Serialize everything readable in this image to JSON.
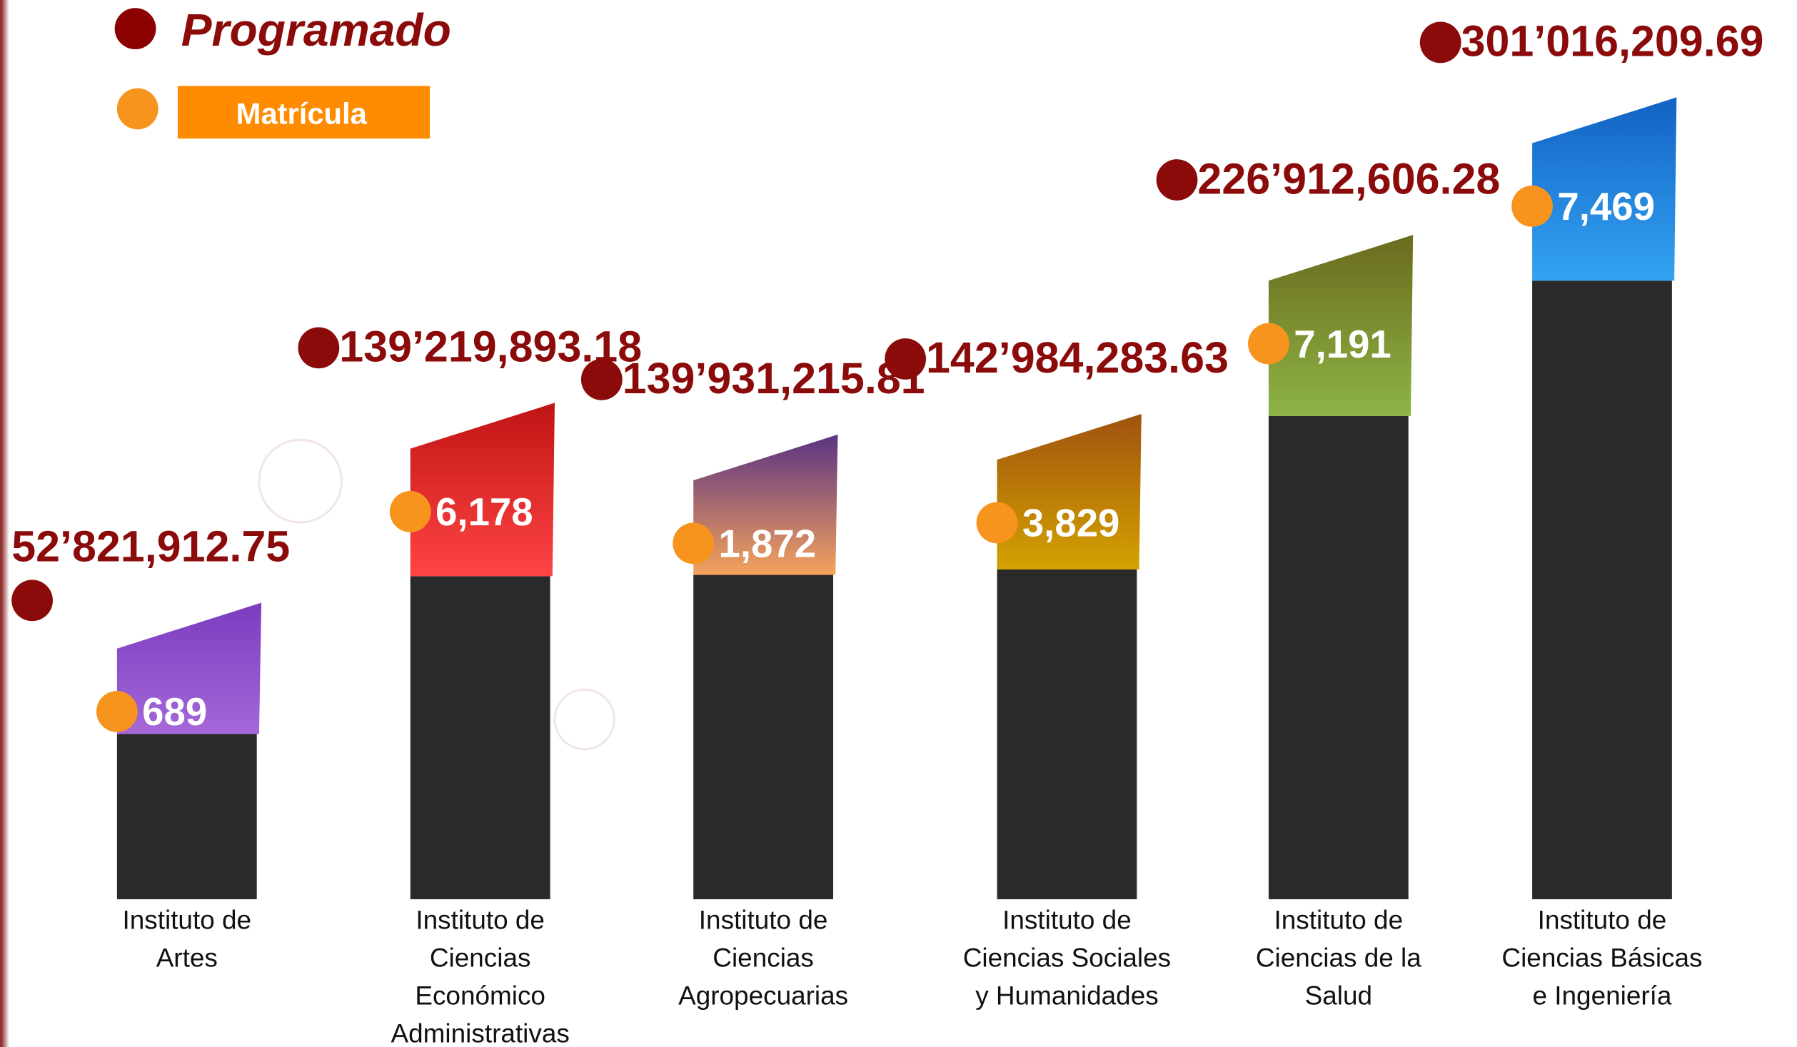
{
  "chart_data": {
    "type": "bar",
    "categories": [
      "Instituto de\nArtes",
      "Instituto de\nCiencias\nEconómico\nAdministrativas",
      "Instituto de\nCiencias\nAgropecuarias",
      "Instituto de\nCiencias Sociales\ny Humanidades",
      "Instituto de\nCiencias de la\nSalud",
      "Instituto de\nCiencias Básicas\ne Ingeniería"
    ],
    "series": [
      {
        "name": "Programado",
        "color": "#8b0a0a",
        "bar_color": "#2a2a2a",
        "values": [
          52821912.75,
          139219893.18,
          139931215.81,
          142984283.63,
          226912606.28,
          301016209.69
        ],
        "value_labels": [
          "52’821,912.75",
          "139’219,893.18",
          "139’931,215.81",
          "142’984,283.63",
          "226’912,606.28",
          "301’016,209.69"
        ]
      },
      {
        "name": "Matrícula",
        "color": "#f7941d",
        "values": [
          689,
          6178,
          1872,
          3829,
          7191,
          7469
        ],
        "value_labels": [
          "689",
          "6,178",
          "1,872",
          "3,829",
          "7,191",
          "7,469"
        ],
        "colors": [
          [
            "#7b3cc0",
            "#a468d8"
          ],
          [
            "#c01414",
            "#ff4444"
          ],
          [
            "#5a3282",
            "#f5a35c"
          ],
          [
            "#a0520f",
            "#d4a200"
          ],
          [
            "#6b6a1e",
            "#8cb444"
          ],
          [
            "#1262c4",
            "#33a3f2"
          ]
        ]
      }
    ]
  }
}
